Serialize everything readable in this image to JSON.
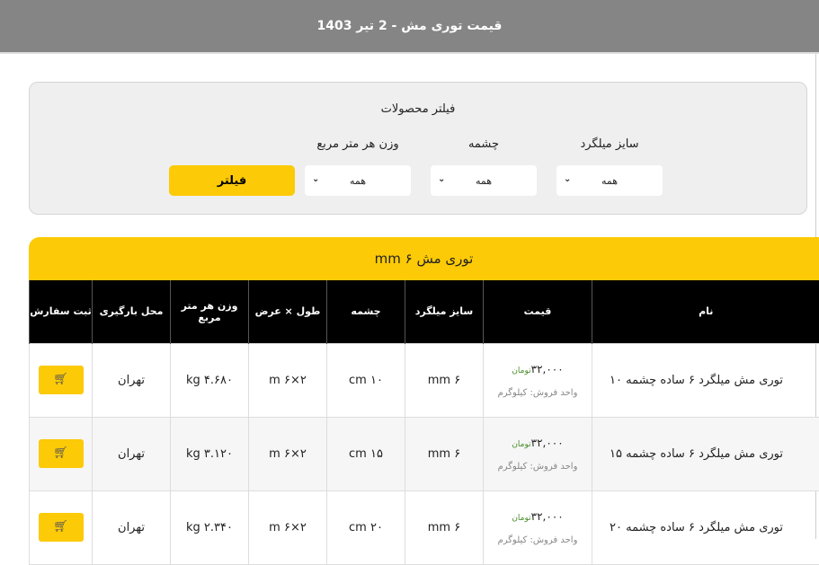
{
  "header": {
    "title": "قیمت توری مش - 2 تیر 1403"
  },
  "filter": {
    "title": "فیلتر محصولات",
    "fields": [
      {
        "label": "سایز میلگرد",
        "value": "همه"
      },
      {
        "label": "چشمه",
        "value": "همه"
      },
      {
        "label": "وزن هر متر مربع",
        "value": "همه"
      }
    ],
    "button": "فیلتر"
  },
  "section": {
    "title": "توری مش  ۶ mm"
  },
  "table": {
    "headers": [
      "نام",
      "قیمت",
      "سایز میلگرد",
      "چشمه",
      "طول × عرض",
      "وزن هر متر مربع",
      "محل بارگیری",
      "ثبت سفارش"
    ],
    "rows": [
      {
        "name": "توری مش میلگرد ۶ ساده چشمه ۱۰",
        "price": "۳۲,۰۰۰",
        "currency": "تومان",
        "unit": "واحد فروش: کیلوگرم",
        "bar": "۶ mm",
        "eye": "۱۰ cm",
        "size": "۲×۶ m",
        "weight": "۴.۶۸۰ kg",
        "place": "تهران"
      },
      {
        "name": "توری مش میلگرد ۶ ساده چشمه ۱۵",
        "price": "۳۲,۰۰۰",
        "currency": "تومان",
        "unit": "واحد فروش: کیلوگرم",
        "bar": "۶ mm",
        "eye": "۱۵ cm",
        "size": "۲×۶ m",
        "weight": "۳.۱۲۰ kg",
        "place": "تهران"
      },
      {
        "name": "توری مش میلگرد ۶ ساده چشمه ۲۰",
        "price": "۳۲,۰۰۰",
        "currency": "تومان",
        "unit": "واحد فروش: کیلوگرم",
        "bar": "۶ mm",
        "eye": "۲۰ cm",
        "size": "۲×۶ m",
        "weight": "۲.۳۴۰ kg",
        "place": "تهران"
      }
    ]
  },
  "colors": {
    "accent": "#fcca06",
    "header": "#858585"
  }
}
